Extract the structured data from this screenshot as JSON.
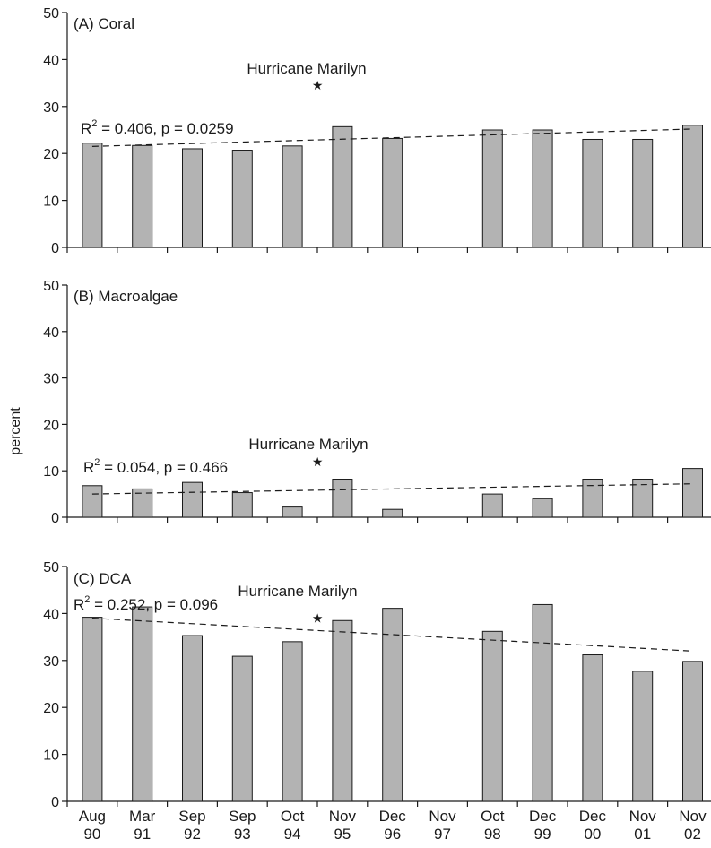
{
  "ylabel": "percent",
  "chart_data": [
    {
      "type": "bar",
      "panel_label": "(A) Coral",
      "categories": [
        "Aug 90",
        "Mar 91",
        "Sep 92",
        "Sep 93",
        "Oct 94",
        "Nov 95",
        "Dec 96",
        "Nov 97",
        "Oct 98",
        "Dec 99",
        "Dec 00",
        "Nov 01",
        "Nov 02"
      ],
      "values": [
        22.2,
        21.7,
        21.0,
        20.7,
        21.6,
        25.7,
        23.2,
        null,
        25.0,
        25.0,
        23.0,
        23.0,
        26.0
      ],
      "ylim": [
        0,
        50
      ],
      "yticks": [
        0,
        10,
        20,
        30,
        40,
        50
      ],
      "stat": "= 0.406, p = 0.0259",
      "annotation": "Hurricane Marilyn",
      "annotation_at": {
        "category": "Oct 94",
        "value": 34.5
      },
      "trend": {
        "start": 21.5,
        "end": 25.2
      }
    },
    {
      "type": "bar",
      "panel_label": "(B) Macroalgae",
      "categories": [
        "Aug 90",
        "Mar 91",
        "Sep 92",
        "Sep 93",
        "Oct 94",
        "Nov 95",
        "Dec 96",
        "Nov 97",
        "Oct 98",
        "Dec 99",
        "Dec 00",
        "Nov 01",
        "Nov 02"
      ],
      "values": [
        6.8,
        6.1,
        7.5,
        5.3,
        2.2,
        8.2,
        1.7,
        null,
        5.0,
        4.0,
        8.2,
        8.2,
        10.5
      ],
      "ylim": [
        0,
        50
      ],
      "yticks": [
        0,
        10,
        20,
        30,
        40,
        50
      ],
      "stat": "= 0.054, p = 0.466",
      "annotation": "Hurricane Marilyn",
      "annotation_at": {
        "category": "Oct 94",
        "value": 12.0
      },
      "trend": {
        "start": 5.0,
        "end": 7.2
      }
    },
    {
      "type": "bar",
      "panel_label": "(C) DCA",
      "categories": [
        "Aug 90",
        "Mar 91",
        "Sep 92",
        "Sep 93",
        "Oct 94",
        "Nov 95",
        "Dec 96",
        "Nov 97",
        "Oct 98",
        "Dec 99",
        "Dec 00",
        "Nov 01",
        "Nov 02"
      ],
      "values": [
        39.2,
        41.4,
        35.3,
        30.9,
        34.0,
        38.5,
        41.1,
        null,
        36.2,
        41.9,
        31.2,
        27.7,
        29.8
      ],
      "ylim": [
        0,
        50
      ],
      "yticks": [
        0,
        10,
        20,
        30,
        40,
        50
      ],
      "stat": "= 0.252, p = 0.096",
      "annotation": "Hurricane Marilyn",
      "annotation_at": {
        "category": "Oct 94",
        "value": 39.0
      },
      "trend": {
        "start": 39.0,
        "end": 32.0
      }
    }
  ],
  "xticks": [
    {
      "month": "Aug",
      "year": "90"
    },
    {
      "month": "Mar",
      "year": "91"
    },
    {
      "month": "Sep",
      "year": "92"
    },
    {
      "month": "Sep",
      "year": "93"
    },
    {
      "month": "Oct",
      "year": "94"
    },
    {
      "month": "Nov",
      "year": "95"
    },
    {
      "month": "Dec",
      "year": "96"
    },
    {
      "month": "Nov",
      "year": "97"
    },
    {
      "month": "Oct",
      "year": "98"
    },
    {
      "month": "Dec",
      "year": "99"
    },
    {
      "month": "Dec",
      "year": "00"
    },
    {
      "month": "Nov",
      "year": "01"
    },
    {
      "month": "Nov",
      "year": "02"
    }
  ]
}
